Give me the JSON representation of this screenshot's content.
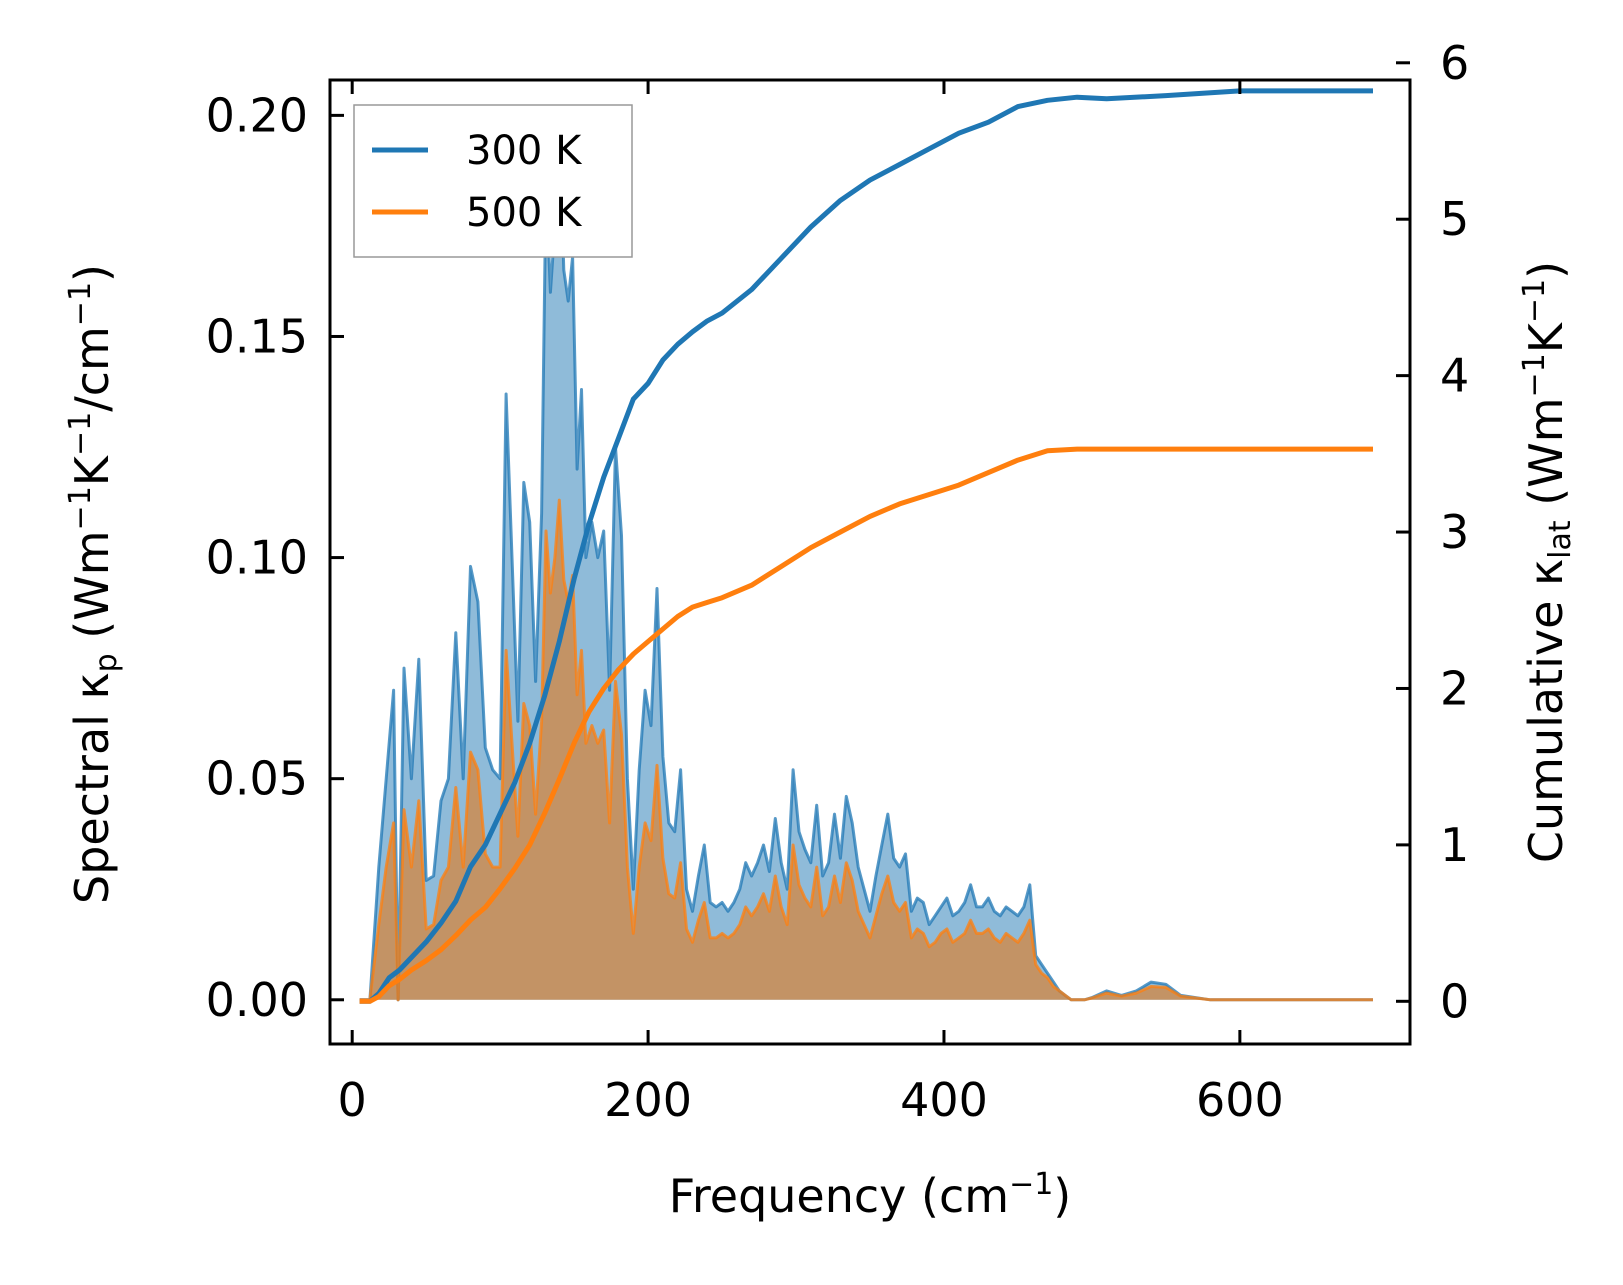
{
  "chart_data": {
    "type": "area",
    "xlabel": {
      "main": "Frequency (cm",
      "sup": "−1",
      "tail": ")"
    },
    "ylabel_left": {
      "pre": "Spectral κ",
      "sub": "p",
      "mid1": " (Wm",
      "sup1": "−1",
      "mid2": "K",
      "sup2": "−1",
      "mid3": "/cm",
      "sup3": "−1",
      "tail": ")"
    },
    "ylabel_right": {
      "pre": "Cumulative κ",
      "sub": "lat",
      "mid1": " (Wm",
      "sup1": "−1",
      "mid2": "K",
      "sup2": "−1",
      "tail": ")"
    },
    "xlim": [
      -15,
      715
    ],
    "ylim_left": [
      -0.01,
      0.208
    ],
    "ylim_right": [
      -0.273,
      5.89
    ],
    "xticks": [
      0,
      200,
      400,
      600
    ],
    "xtick_labels": [
      "0",
      "200",
      "400",
      "600"
    ],
    "yticks_left": [
      0.0,
      0.05,
      0.1,
      0.15,
      0.2
    ],
    "ytick_labels_left": [
      "0.00",
      "0.05",
      "0.10",
      "0.15",
      "0.20"
    ],
    "yticks_right": [
      0,
      1,
      2,
      3,
      4,
      5,
      6
    ],
    "ytick_labels_right": [
      "0",
      "1",
      "2",
      "3",
      "4",
      "5",
      "6"
    ],
    "legend": {
      "position": "top-left",
      "entries": [
        "300 K",
        "500 K"
      ]
    },
    "colors": {
      "series_300": "#1f77b4",
      "series_500": "#ff7f0e",
      "fill_300": "#1f77b4",
      "fill_500": "#d4863e"
    },
    "spectral": {
      "series": [
        {
          "name": "300 K",
          "x": [
            5,
            12,
            18,
            23,
            28,
            31,
            35,
            40,
            45,
            50,
            55,
            60,
            65,
            70,
            75,
            80,
            85,
            90,
            95,
            100,
            104,
            108,
            112,
            116,
            120,
            124,
            128,
            131,
            134,
            137,
            140,
            143,
            146,
            149,
            152,
            155,
            158,
            162,
            166,
            170,
            174,
            178,
            182,
            186,
            190,
            194,
            198,
            202,
            206,
            210,
            214,
            218,
            222,
            226,
            230,
            234,
            238,
            242,
            246,
            250,
            254,
            258,
            262,
            266,
            270,
            274,
            278,
            282,
            286,
            290,
            294,
            298,
            302,
            306,
            310,
            314,
            318,
            322,
            326,
            330,
            334,
            338,
            342,
            346,
            350,
            354,
            358,
            362,
            366,
            370,
            374,
            378,
            382,
            386,
            390,
            394,
            398,
            402,
            406,
            410,
            414,
            418,
            422,
            426,
            430,
            434,
            438,
            442,
            446,
            450,
            454,
            458,
            462,
            466,
            470,
            474,
            478,
            482,
            486,
            490,
            495,
            500,
            510,
            520,
            530,
            540,
            550,
            560,
            570,
            580,
            590,
            600,
            620,
            650,
            690
          ],
          "y": [
            0,
            0,
            0.03,
            0.05,
            0.07,
            0.0,
            0.075,
            0.05,
            0.077,
            0.027,
            0.028,
            0.045,
            0.05,
            0.083,
            0.05,
            0.098,
            0.09,
            0.057,
            0.052,
            0.05,
            0.137,
            0.1,
            0.063,
            0.117,
            0.108,
            0.072,
            0.11,
            0.185,
            0.16,
            0.175,
            0.198,
            0.165,
            0.158,
            0.168,
            0.12,
            0.138,
            0.1,
            0.108,
            0.1,
            0.106,
            0.07,
            0.125,
            0.105,
            0.05,
            0.025,
            0.052,
            0.07,
            0.062,
            0.093,
            0.055,
            0.04,
            0.038,
            0.052,
            0.025,
            0.02,
            0.028,
            0.035,
            0.022,
            0.021,
            0.022,
            0.02,
            0.022,
            0.025,
            0.031,
            0.028,
            0.031,
            0.035,
            0.029,
            0.041,
            0.031,
            0.025,
            0.052,
            0.038,
            0.034,
            0.031,
            0.044,
            0.028,
            0.031,
            0.042,
            0.032,
            0.046,
            0.04,
            0.03,
            0.025,
            0.02,
            0.028,
            0.035,
            0.042,
            0.032,
            0.03,
            0.033,
            0.02,
            0.023,
            0.022,
            0.017,
            0.019,
            0.021,
            0.023,
            0.019,
            0.02,
            0.022,
            0.026,
            0.021,
            0.021,
            0.023,
            0.02,
            0.019,
            0.021,
            0.02,
            0.019,
            0.021,
            0.026,
            0.01,
            0.008,
            0.006,
            0.004,
            0.002,
            0.001,
            0.0,
            0.0,
            0.0,
            0.0005,
            0.002,
            0.001,
            0.002,
            0.004,
            0.0035,
            0.001,
            0.0005,
            0.0,
            0.0,
            0.0,
            0.0,
            0.0,
            0.0
          ],
          "cumulative_x": [
            5,
            12,
            18,
            25,
            32,
            40,
            50,
            60,
            70,
            80,
            90,
            100,
            110,
            120,
            130,
            140,
            150,
            160,
            170,
            180,
            190,
            200,
            210,
            220,
            230,
            240,
            250,
            270,
            290,
            310,
            330,
            350,
            370,
            390,
            410,
            430,
            450,
            470,
            490,
            510,
            550,
            600,
            690
          ],
          "cumulative_y": [
            0,
            0,
            0.05,
            0.15,
            0.2,
            0.28,
            0.38,
            0.5,
            0.64,
            0.86,
            1.0,
            1.2,
            1.4,
            1.65,
            1.95,
            2.3,
            2.7,
            3.05,
            3.35,
            3.6,
            3.85,
            3.95,
            4.1,
            4.2,
            4.28,
            4.35,
            4.4,
            4.55,
            4.75,
            4.95,
            5.12,
            5.25,
            5.35,
            5.45,
            5.55,
            5.62,
            5.72,
            5.76,
            5.78,
            5.77,
            5.79,
            5.82,
            5.82
          ]
        },
        {
          "name": "500 K",
          "x": [
            5,
            12,
            18,
            23,
            28,
            31,
            35,
            40,
            45,
            50,
            55,
            60,
            65,
            70,
            75,
            80,
            85,
            90,
            95,
            100,
            104,
            108,
            112,
            116,
            120,
            124,
            128,
            131,
            134,
            137,
            140,
            143,
            146,
            149,
            152,
            155,
            158,
            162,
            166,
            170,
            174,
            178,
            182,
            186,
            190,
            194,
            198,
            202,
            206,
            210,
            214,
            218,
            222,
            226,
            230,
            234,
            238,
            242,
            246,
            250,
            254,
            258,
            262,
            266,
            270,
            274,
            278,
            282,
            286,
            290,
            294,
            298,
            302,
            306,
            310,
            314,
            318,
            322,
            326,
            330,
            334,
            338,
            342,
            346,
            350,
            354,
            358,
            362,
            366,
            370,
            374,
            378,
            382,
            386,
            390,
            394,
            398,
            402,
            406,
            410,
            414,
            418,
            422,
            426,
            430,
            434,
            438,
            442,
            446,
            450,
            454,
            458,
            462,
            466,
            470,
            474,
            478,
            482,
            486,
            490,
            495,
            500,
            510,
            520,
            530,
            540,
            550,
            560,
            570,
            580,
            590,
            600,
            620,
            650,
            690
          ],
          "y": [
            0,
            0,
            0.017,
            0.03,
            0.04,
            0.0,
            0.043,
            0.03,
            0.045,
            0.016,
            0.017,
            0.027,
            0.03,
            0.048,
            0.03,
            0.056,
            0.052,
            0.033,
            0.03,
            0.03,
            0.079,
            0.058,
            0.037,
            0.067,
            0.062,
            0.042,
            0.063,
            0.106,
            0.092,
            0.1,
            0.113,
            0.095,
            0.09,
            0.096,
            0.069,
            0.079,
            0.058,
            0.062,
            0.058,
            0.061,
            0.04,
            0.072,
            0.06,
            0.03,
            0.015,
            0.03,
            0.04,
            0.036,
            0.053,
            0.032,
            0.024,
            0.023,
            0.031,
            0.016,
            0.013,
            0.018,
            0.022,
            0.014,
            0.014,
            0.015,
            0.014,
            0.015,
            0.017,
            0.021,
            0.019,
            0.021,
            0.024,
            0.02,
            0.028,
            0.021,
            0.017,
            0.035,
            0.026,
            0.023,
            0.021,
            0.03,
            0.019,
            0.021,
            0.028,
            0.022,
            0.031,
            0.027,
            0.02,
            0.017,
            0.014,
            0.019,
            0.024,
            0.028,
            0.022,
            0.02,
            0.022,
            0.014,
            0.016,
            0.015,
            0.012,
            0.013,
            0.015,
            0.016,
            0.013,
            0.014,
            0.015,
            0.018,
            0.015,
            0.015,
            0.016,
            0.014,
            0.013,
            0.015,
            0.014,
            0.013,
            0.015,
            0.018,
            0.008,
            0.006,
            0.005,
            0.003,
            0.002,
            0.001,
            0.0,
            0.0,
            0.0,
            0.0004,
            0.0015,
            0.0008,
            0.0015,
            0.003,
            0.0028,
            0.0008,
            0.0004,
            0.0,
            0.0,
            0.0,
            0.0,
            0.0,
            0.0
          ],
          "cumulative_x": [
            5,
            12,
            18,
            25,
            32,
            40,
            50,
            60,
            70,
            80,
            90,
            100,
            110,
            120,
            130,
            140,
            150,
            160,
            170,
            180,
            190,
            200,
            210,
            220,
            230,
            240,
            250,
            270,
            290,
            310,
            330,
            350,
            370,
            390,
            410,
            430,
            450,
            470,
            490,
            510,
            550,
            600,
            690
          ],
          "cumulative_y": [
            0,
            0,
            0.03,
            0.1,
            0.14,
            0.2,
            0.26,
            0.33,
            0.42,
            0.52,
            0.6,
            0.72,
            0.85,
            1.0,
            1.2,
            1.42,
            1.65,
            1.85,
            2.0,
            2.12,
            2.22,
            2.3,
            2.38,
            2.46,
            2.52,
            2.55,
            2.58,
            2.66,
            2.78,
            2.9,
            3.0,
            3.1,
            3.18,
            3.24,
            3.3,
            3.38,
            3.46,
            3.52,
            3.53,
            3.53,
            3.53,
            3.53,
            3.53
          ]
        }
      ]
    }
  }
}
